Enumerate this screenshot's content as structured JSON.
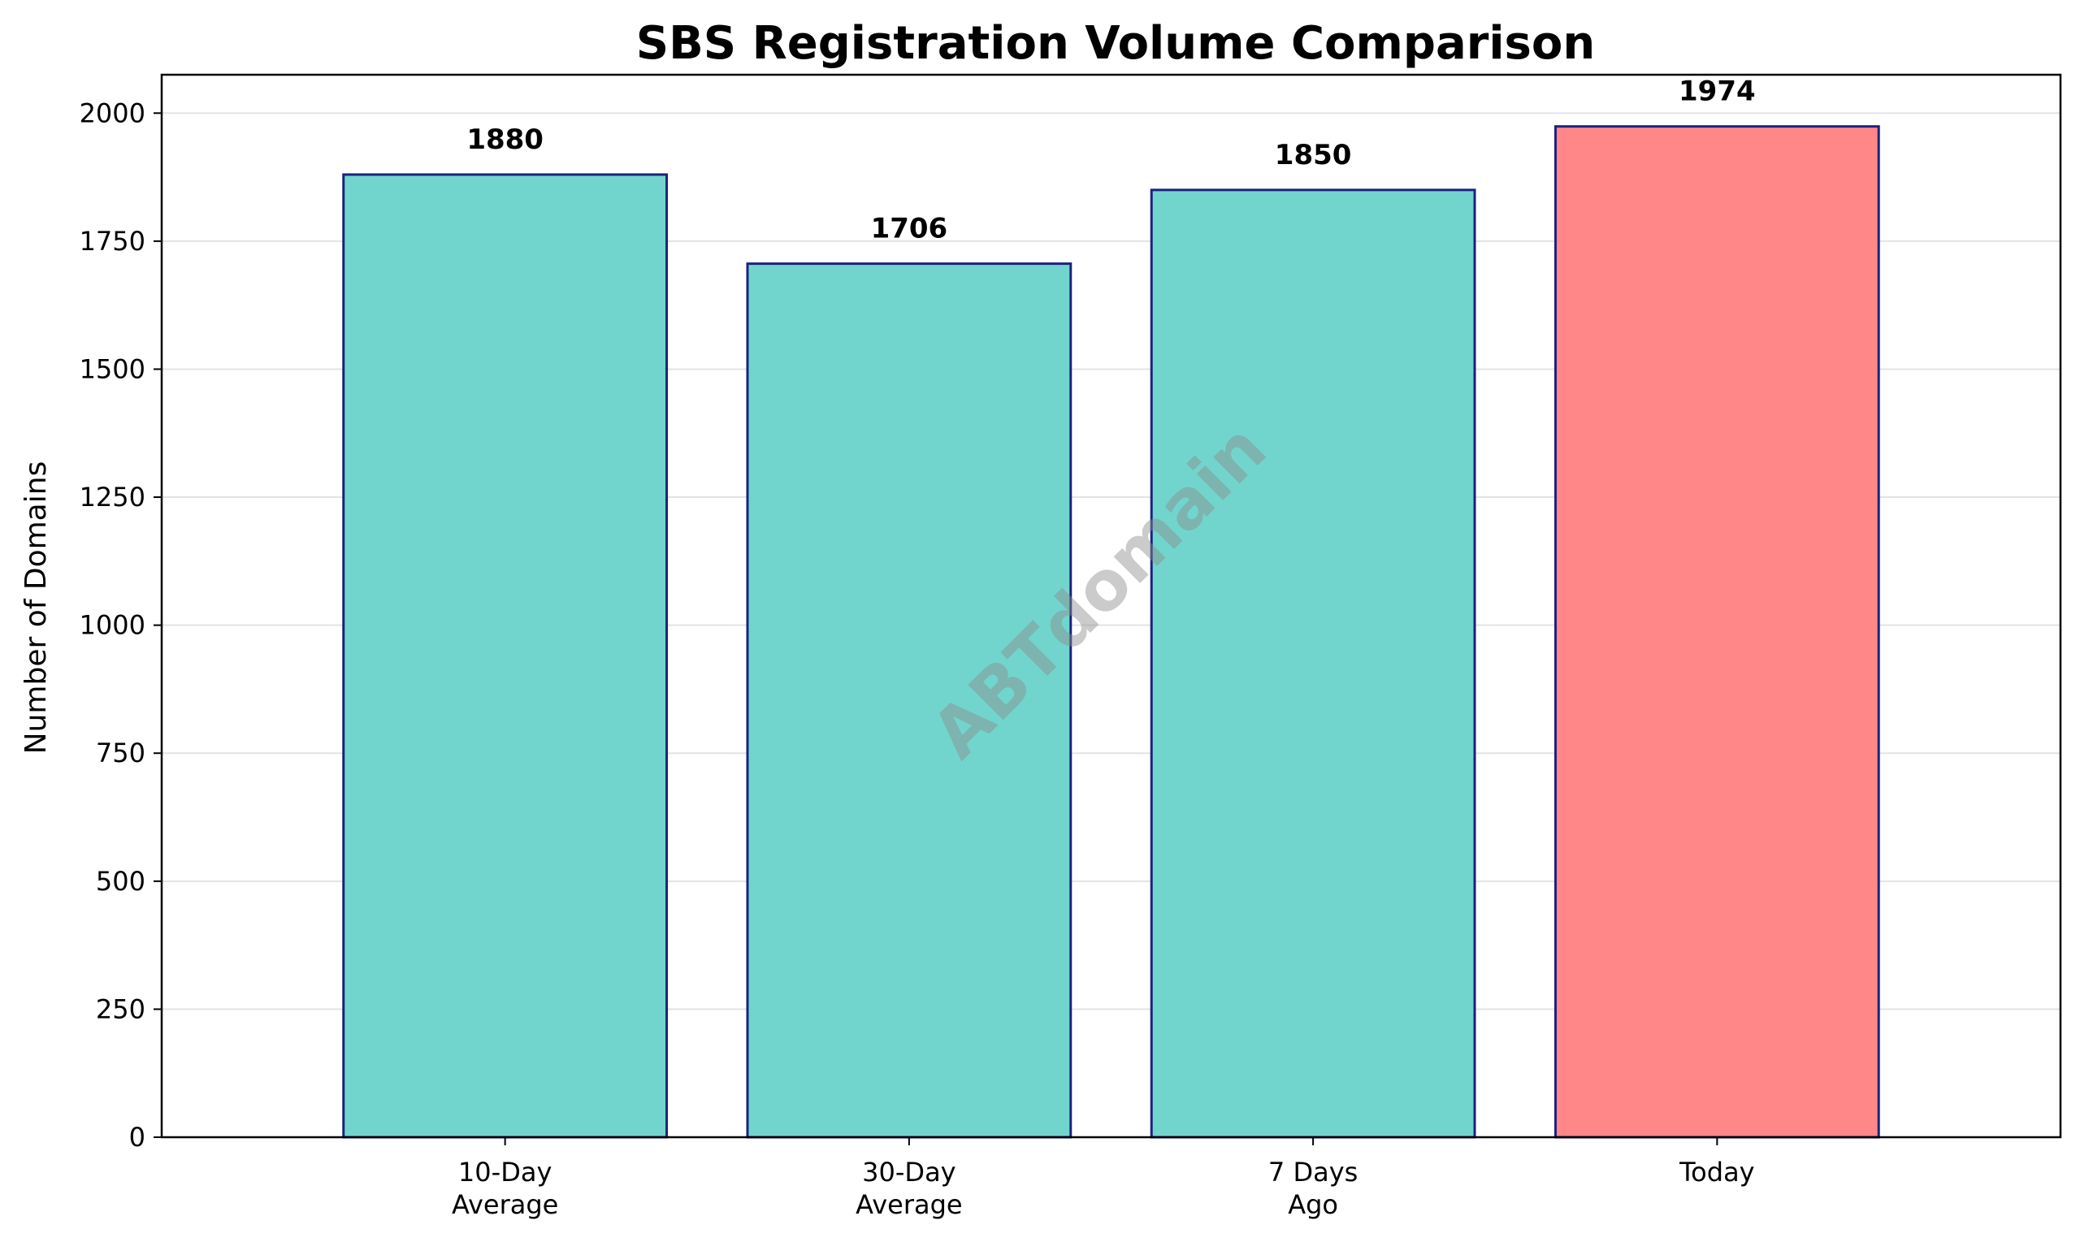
{
  "chart_data": {
    "type": "bar",
    "title": "SBS Registration Volume Comparison",
    "xlabel": "",
    "ylabel": "Number of Domains",
    "categories": [
      [
        "10-Day",
        "Average"
      ],
      [
        "30-Day",
        "Average"
      ],
      [
        "7 Days",
        "Ago"
      ],
      [
        "Today"
      ]
    ],
    "values": [
      1880,
      1706,
      1850,
      1974
    ],
    "data_labels": [
      "1880",
      "1706",
      "1850",
      "1974"
    ],
    "bar_colors": [
      "#72d5cd",
      "#72d5cd",
      "#72d5cd",
      "#ff8787"
    ],
    "edge_color": "#1a237e",
    "ylim": [
      0,
      2075
    ],
    "yticks": [
      0,
      250,
      500,
      750,
      1000,
      1250,
      1500,
      1750,
      2000
    ],
    "grid": "horizontal",
    "watermark": "ABTdomain"
  }
}
